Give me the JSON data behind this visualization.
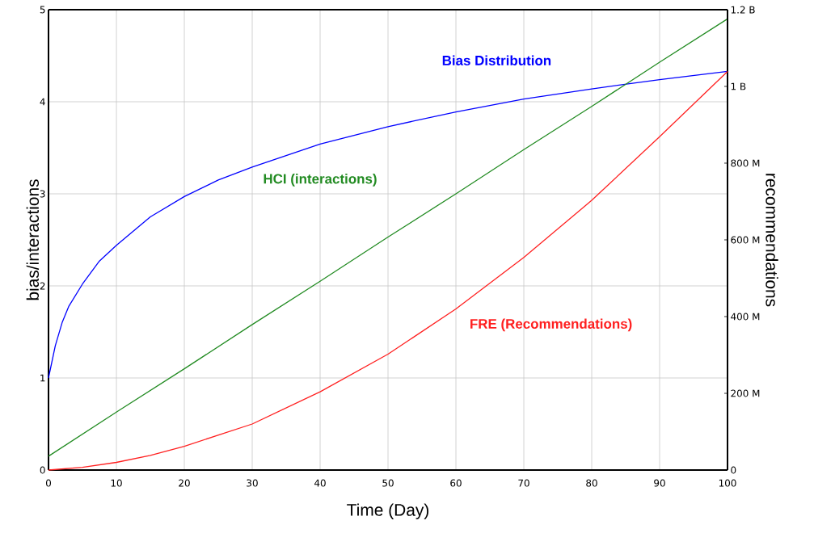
{
  "chart_data": {
    "type": "line",
    "xlabel": "Time (Day)",
    "ylabel": "bias/interactions",
    "y2label": "recommendations",
    "xlim": [
      0,
      100
    ],
    "xticks": [
      0,
      10,
      20,
      30,
      40,
      50,
      60,
      70,
      80,
      90,
      100
    ],
    "ylim": [
      0,
      5
    ],
    "yticks": [
      0,
      1,
      2,
      3,
      4,
      5
    ],
    "y2lim": [
      0,
      1200000000
    ],
    "y2ticks": [
      {
        "value": 0,
        "label": "0"
      },
      {
        "value": 200000000,
        "label": "200 M"
      },
      {
        "value": 400000000,
        "label": "400 M"
      },
      {
        "value": 600000000,
        "label": "600 M"
      },
      {
        "value": 800000000,
        "label": "800 M"
      },
      {
        "value": 1000000000,
        "label": "1 B"
      },
      {
        "value": 1200000000,
        "label": "1.2 B"
      }
    ],
    "grid": true,
    "line_style": "solid",
    "series": [
      {
        "name": "Bias Distribution",
        "color": "#0000ff",
        "x": [
          0,
          1,
          2,
          3,
          5,
          7.5,
          10,
          15,
          20,
          25,
          30,
          40,
          50,
          60,
          70,
          80,
          90,
          100
        ],
        "values": [
          1.0,
          1.35,
          1.6,
          1.78,
          2.02,
          2.27,
          2.44,
          2.75,
          2.97,
          3.15,
          3.29,
          3.54,
          3.73,
          3.89,
          4.03,
          4.14,
          4.24,
          4.33
        ]
      },
      {
        "name": "HCI (interactions)",
        "color": "#228b22",
        "x": [
          0,
          10,
          20,
          30,
          40,
          50,
          60,
          70,
          80,
          90,
          100
        ],
        "values": [
          0.15,
          0.63,
          1.1,
          1.58,
          2.05,
          2.53,
          3.0,
          3.48,
          3.95,
          4.43,
          4.9
        ]
      },
      {
        "name": "FRE (Recommendations)",
        "color": "#ff2020",
        "axis": "y2",
        "x": [
          0,
          5,
          10,
          15,
          20,
          30,
          40,
          50,
          60,
          70,
          80,
          90,
          100
        ],
        "values": [
          0,
          7000000,
          20000000,
          38000000,
          62000000,
          120000000,
          204000000,
          302000000,
          420000000,
          554000000,
          703000000,
          869000000,
          1039000000
        ]
      }
    ]
  }
}
